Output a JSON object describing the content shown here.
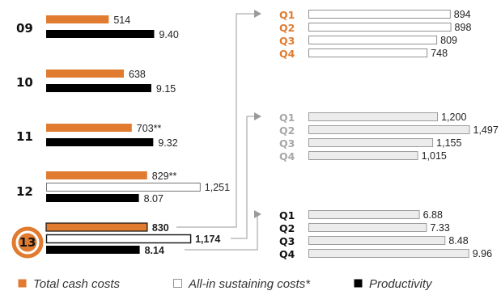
{
  "chart_data": [
    {
      "type": "bar",
      "orientation": "horizontal",
      "categories": [
        "09",
        "10",
        "11",
        "12",
        "13"
      ],
      "series": [
        {
          "name": "Total cash costs",
          "values": [
            514,
            638,
            703,
            829,
            830
          ],
          "labels": [
            "514",
            "638",
            "703**",
            "829**",
            "830"
          ],
          "color": "#e07b30"
        },
        {
          "name": "All-in sustaining costs*",
          "values": [
            null,
            null,
            null,
            1251,
            1174
          ],
          "labels": [
            "",
            "",
            "",
            "1,251",
            "1,174"
          ],
          "color": "#ffffff"
        },
        {
          "name": "Productivity",
          "values": [
            9.4,
            9.15,
            9.32,
            8.07,
            8.14
          ],
          "labels": [
            "9.40",
            "9.15",
            "9.32",
            "8.07",
            "8.14"
          ],
          "color": "#000000"
        }
      ],
      "highlight_category": "13",
      "legend": {
        "placement": "bottom",
        "items": [
          "Total cash costs",
          "All-in sustaining costs*",
          "Productivity"
        ]
      }
    },
    {
      "type": "bar",
      "orientation": "horizontal",
      "categories": [
        "Q1",
        "Q2",
        "Q3",
        "Q4"
      ],
      "series": [
        {
          "name": "Total cash costs",
          "values": [
            894,
            898,
            809,
            748
          ],
          "labels": [
            "894",
            "898",
            "809",
            "748"
          ]
        }
      ],
      "label_color": "#e07b30"
    },
    {
      "type": "bar",
      "orientation": "horizontal",
      "categories": [
        "Q1",
        "Q2",
        "Q3",
        "Q4"
      ],
      "series": [
        {
          "name": "All-in sustaining costs*",
          "values": [
            1200,
            1497,
            1155,
            1015
          ],
          "labels": [
            "1,200",
            "1,497",
            "1,155",
            "1,015"
          ]
        }
      ],
      "label_color": "#a8a8a8"
    },
    {
      "type": "bar",
      "orientation": "horizontal",
      "categories": [
        "Q1",
        "Q2",
        "Q3",
        "Q4"
      ],
      "series": [
        {
          "name": "Productivity",
          "values": [
            6.88,
            7.33,
            8.48,
            9.96
          ],
          "labels": [
            "6.88",
            "7.33",
            "8.48",
            "9.96"
          ]
        }
      ],
      "label_color": "#111111"
    }
  ]
}
